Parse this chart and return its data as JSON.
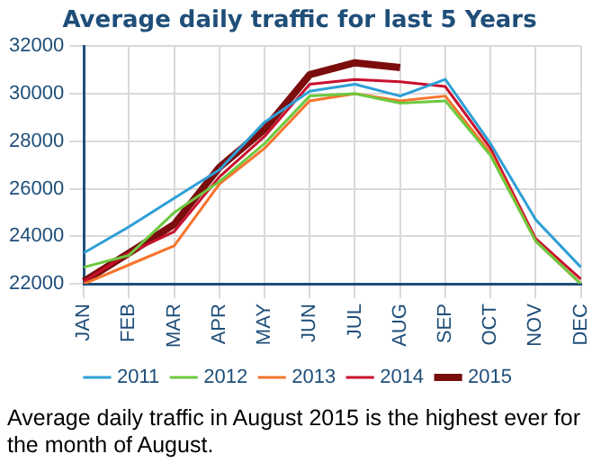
{
  "chart_data": {
    "type": "line",
    "title": "Average daily traffic for last 5 Years",
    "categories": [
      "JAN",
      "FEB",
      "MAR",
      "APR",
      "MAY",
      "JUN",
      "JUL",
      "AUG",
      "SEP",
      "OCT",
      "NOV",
      "DEC"
    ],
    "series": [
      {
        "name": "2011",
        "color": "#2e9fd6",
        "values": [
          23300,
          24400,
          25600,
          26800,
          28800,
          30100,
          30400,
          29900,
          30600,
          27900,
          24700,
          22700
        ]
      },
      {
        "name": "2012",
        "color": "#6cc93e",
        "values": [
          22700,
          23200,
          25000,
          26300,
          27900,
          29900,
          30000,
          29600,
          29700,
          27400,
          23800,
          22000
        ]
      },
      {
        "name": "2013",
        "color": "#f7742c",
        "values": [
          22000,
          22800,
          23600,
          26200,
          27700,
          29700,
          30000,
          29700,
          29900,
          27500,
          23800,
          22000
        ]
      },
      {
        "name": "2014",
        "color": "#c8102e",
        "values": [
          22100,
          23300,
          24200,
          26500,
          28200,
          30400,
          30600,
          30500,
          30300,
          27700,
          23900,
          22200
        ]
      },
      {
        "name": "2015",
        "color": "#7b0d0d",
        "values": [
          22100,
          23300,
          24500,
          26900,
          28500,
          30800,
          31300,
          31100,
          null,
          null,
          null,
          null
        ]
      }
    ],
    "ylim": [
      22000,
      32000
    ],
    "yticks": [
      22000,
      24000,
      26000,
      28000,
      30000,
      32000
    ],
    "grid": true,
    "legend": "bottom",
    "marker": "none",
    "line_style": "solid",
    "annotations": [
      "Average daily traffic in August 2015 is the highest ever for the month of August."
    ]
  }
}
